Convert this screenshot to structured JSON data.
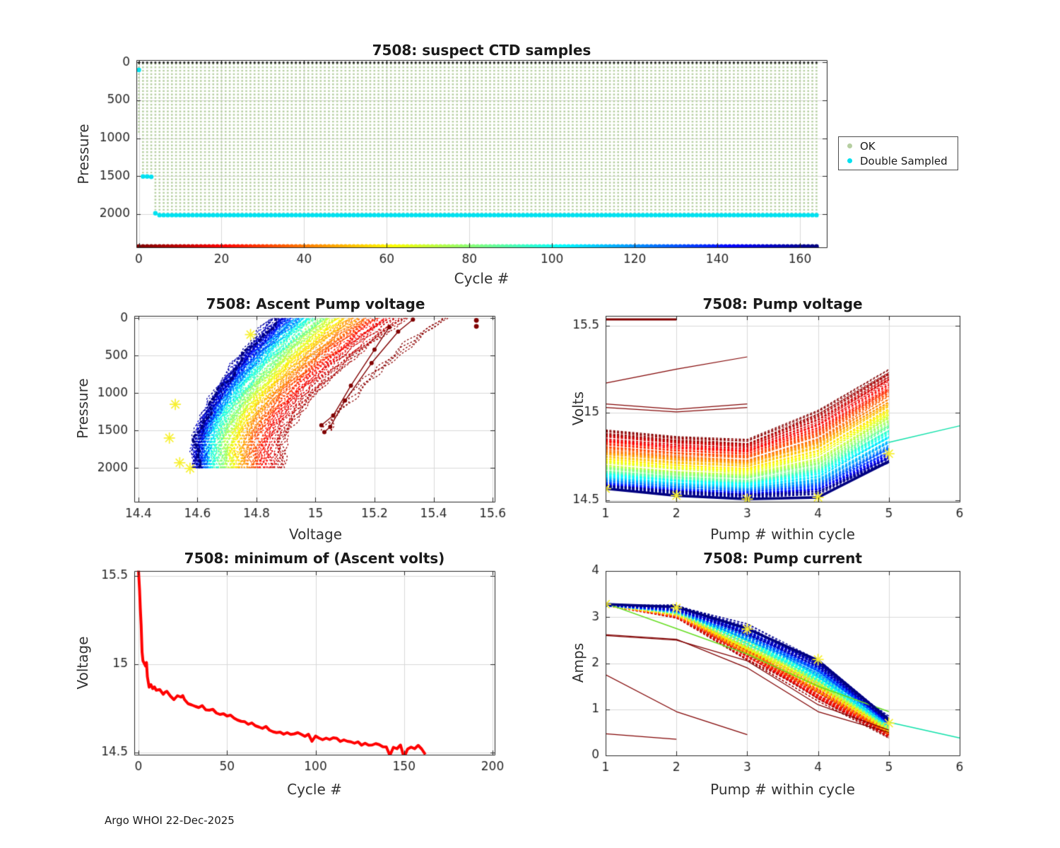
{
  "footer": {
    "text": "Argo WHOI 22-Dec-2025"
  },
  "styles": {
    "ok_green": "#b6cfa1",
    "cyan": "#00e1f0",
    "teal_line": "#0ce0a8",
    "dark_red": "#800000",
    "navy": "#000080",
    "red_line": "#ff0000",
    "asterisk_yellow": "#f7ef2e",
    "grid": "#d8d8d8",
    "axis": "#262626",
    "text": "#262626"
  },
  "chart_data": [
    {
      "id": "suspect-ctd",
      "type": "scatter",
      "title": "7508: suspect CTD samples",
      "xlabel": "Cycle #",
      "ylabel": "Pressure",
      "xlim": [
        0,
        166
      ],
      "xticks": [
        0,
        20,
        40,
        60,
        80,
        100,
        120,
        140,
        160
      ],
      "ylim": [
        0,
        2440
      ],
      "yticks": [
        0,
        500,
        1000,
        1500,
        2000
      ],
      "grid": true,
      "legend": {
        "position": "right-outside",
        "entries": [
          {
            "label": "OK",
            "color": "#b6cfa1"
          },
          {
            "label": "Double Sampled",
            "color": "#00e1f0"
          }
        ]
      },
      "series": {
        "n_cycles": 165,
        "profile_top_pressure": 10,
        "default_profile_bottom": 1990,
        "default_double_pressure": 2015,
        "exceptions": [
          {
            "cycle": 0,
            "bottom": 950,
            "double_pressure": 100
          },
          {
            "cycle": 1,
            "bottom": 1470,
            "double_pressure": 1505
          },
          {
            "cycle": 2,
            "bottom": 1470,
            "double_pressure": 1505
          },
          {
            "cycle": 3,
            "bottom": 1480,
            "double_pressure": 1510
          },
          {
            "cycle": 4,
            "bottom": 1950,
            "double_pressure": 1990
          }
        ],
        "cycle_color_row_pressure": 2430,
        "colormap": "jet-earliest-red"
      }
    },
    {
      "id": "ascent-pump-voltage",
      "type": "line-family",
      "title": "7508: Ascent Pump voltage",
      "xlabel": "Voltage",
      "ylabel": "Pressure",
      "xlim": [
        14.4,
        15.6
      ],
      "xticks": [
        14.4,
        14.6,
        14.8,
        15,
        15.2,
        15.4,
        15.6
      ],
      "ylim": [
        0,
        2450
      ],
      "yticks": [
        0,
        500,
        1000,
        1500,
        2000
      ],
      "grid": true,
      "family": {
        "count": 165,
        "colormap": "jet-earliest-red",
        "bottom_voltage_latest": 14.6,
        "bottom_voltage_earliest": 14.9,
        "rise_latest": 0.27,
        "rise_earliest": 0.41,
        "curve_start_pressure": 1700,
        "curve_power": 1.5,
        "max_pressure_default": 2000,
        "max_pressure_first_cycles": [
          950,
          1500,
          1500,
          1500,
          1950
        ],
        "early_shift": 0.13
      },
      "outlier_dots": [
        [
          15.545,
          30
        ],
        [
          15.545,
          110
        ]
      ],
      "outlier_lines": [
        [
          [
            15.03,
            1520
          ],
          [
            15.05,
            1450
          ],
          [
            15.1,
            1100
          ],
          [
            15.19,
            600
          ],
          [
            15.28,
            180
          ],
          [
            15.33,
            20
          ]
        ],
        [
          [
            15.02,
            1430
          ],
          [
            15.06,
            1300
          ],
          [
            15.12,
            900
          ],
          [
            15.2,
            420
          ],
          [
            15.25,
            120
          ]
        ]
      ],
      "asterisks": [
        [
          14.78,
          220
        ],
        [
          14.525,
          1150
        ],
        [
          14.505,
          1600
        ],
        [
          14.54,
          1930
        ],
        [
          14.575,
          2005
        ]
      ]
    },
    {
      "id": "pump-voltage",
      "type": "line-family",
      "title": "7508: Pump voltage",
      "xlabel": "Pump # within cycle",
      "ylabel": "Volts",
      "xlim": [
        1,
        6
      ],
      "xticks": [
        1,
        2,
        3,
        4,
        5,
        6
      ],
      "ylim": [
        14.49,
        15.555
      ],
      "yticks": [
        14.5,
        15,
        15.5
      ],
      "grid": true,
      "family": {
        "count": 160,
        "colormap": "jet-earliest-red",
        "x": [
          1,
          2,
          3,
          4,
          5
        ],
        "v1_latest": 14.575,
        "v1_earliest": 14.9,
        "dip2": 0.035,
        "dip3": 0.055,
        "v5_latest": 14.72,
        "v5_earliest": 15.24,
        "v4_frac_latest": 0.08,
        "v4_frac_earliest": 0.42
      },
      "highlight_line": [
        [
          1,
          14.565
        ],
        [
          2,
          14.525
        ],
        [
          3,
          14.505
        ],
        [
          4,
          14.515
        ],
        [
          5,
          14.72
        ]
      ],
      "outlier_lines": [
        {
          "points": [
            [
              1,
              15.535
            ],
            [
              2,
              15.535
            ]
          ],
          "width": 3
        },
        {
          "points": [
            [
              1,
              15.17
            ],
            [
              2,
              15.25
            ],
            [
              3,
              15.32
            ]
          ],
          "width": 1.2
        },
        {
          "points": [
            [
              1,
              15.05
            ],
            [
              2,
              15.02
            ],
            [
              3,
              15.05
            ]
          ],
          "width": 1.2
        },
        {
          "points": [
            [
              1,
              15.03
            ],
            [
              2,
              15.005
            ],
            [
              3,
              15.03
            ]
          ],
          "width": 1.2
        }
      ],
      "continuation_line": {
        "points": [
          [
            5,
            14.83
          ],
          [
            6,
            14.925
          ]
        ],
        "color": "#0ce0a8"
      },
      "asterisks": [
        [
          1,
          14.565
        ],
        [
          2,
          14.525
        ],
        [
          3,
          14.505
        ],
        [
          4,
          14.515
        ],
        [
          5,
          14.765
        ]
      ]
    },
    {
      "id": "min-ascent-volts",
      "type": "line",
      "title": "7508: minimum of (Ascent volts)",
      "xlabel": "Cycle #",
      "ylabel": "Voltage",
      "xlim": [
        0,
        200
      ],
      "xticks": [
        0,
        50,
        100,
        150,
        200
      ],
      "ylim": [
        14.5,
        15.53
      ],
      "yticks": [
        14.5,
        15,
        15.5
      ],
      "grid": true,
      "line": {
        "color": "#ff0000",
        "width": 4,
        "points": [
          [
            0,
            15.53
          ],
          [
            0.6,
            15.42
          ],
          [
            1,
            15.32
          ],
          [
            1.5,
            15.22
          ],
          [
            2,
            15.07
          ],
          [
            2.5,
            15.02
          ],
          [
            3,
            15.01
          ],
          [
            4,
            14.99
          ],
          [
            4.5,
            15.01
          ],
          [
            5,
            14.93
          ],
          [
            6,
            14.87
          ],
          [
            7,
            14.885
          ],
          [
            8,
            14.862
          ],
          [
            9,
            14.872
          ],
          [
            10,
            14.853
          ],
          [
            12,
            14.857
          ],
          [
            14,
            14.83
          ],
          [
            15,
            14.842
          ],
          [
            16,
            14.847
          ],
          [
            18,
            14.82
          ],
          [
            20,
            14.8
          ],
          [
            22,
            14.822
          ],
          [
            24,
            14.814
          ],
          [
            25,
            14.823
          ],
          [
            26,
            14.8
          ],
          [
            28,
            14.777
          ],
          [
            30,
            14.77
          ],
          [
            32,
            14.762
          ],
          [
            34,
            14.755
          ],
          [
            36,
            14.766
          ],
          [
            38,
            14.742
          ],
          [
            40,
            14.74
          ],
          [
            42,
            14.745
          ],
          [
            44,
            14.724
          ],
          [
            46,
            14.716
          ],
          [
            48,
            14.72
          ],
          [
            50,
            14.707
          ],
          [
            52,
            14.712
          ],
          [
            54,
            14.695
          ],
          [
            56,
            14.684
          ],
          [
            58,
            14.677
          ],
          [
            60,
            14.675
          ],
          [
            62,
            14.66
          ],
          [
            64,
            14.668
          ],
          [
            66,
            14.652
          ],
          [
            68,
            14.645
          ],
          [
            70,
            14.637
          ],
          [
            72,
            14.648
          ],
          [
            74,
            14.627
          ],
          [
            76,
            14.618
          ],
          [
            78,
            14.613
          ],
          [
            80,
            14.616
          ],
          [
            82,
            14.604
          ],
          [
            84,
            14.613
          ],
          [
            86,
            14.603
          ],
          [
            88,
            14.606
          ],
          [
            90,
            14.613
          ],
          [
            92,
            14.603
          ],
          [
            94,
            14.592
          ],
          [
            96,
            14.604
          ],
          [
            98,
            14.564
          ],
          [
            100,
            14.594
          ],
          [
            102,
            14.582
          ],
          [
            104,
            14.573
          ],
          [
            106,
            14.582
          ],
          [
            108,
            14.574
          ],
          [
            110,
            14.584
          ],
          [
            112,
            14.581
          ],
          [
            114,
            14.563
          ],
          [
            116,
            14.572
          ],
          [
            118,
            14.564
          ],
          [
            120,
            14.561
          ],
          [
            122,
            14.553
          ],
          [
            124,
            14.561
          ],
          [
            126,
            14.542
          ],
          [
            128,
            14.553
          ],
          [
            130,
            14.542
          ],
          [
            132,
            14.543
          ],
          [
            134,
            14.551
          ],
          [
            136,
            14.545
          ],
          [
            138,
            14.533
          ],
          [
            140,
            14.532
          ],
          [
            142,
            14.484
          ],
          [
            144,
            14.53
          ],
          [
            146,
            14.522
          ],
          [
            148,
            14.543
          ],
          [
            150,
            14.472
          ],
          [
            152,
            14.52
          ],
          [
            154,
            14.531
          ],
          [
            156,
            14.522
          ],
          [
            158,
            14.541
          ],
          [
            160,
            14.52
          ],
          [
            161,
            14.505
          ],
          [
            162,
            14.49
          ]
        ]
      }
    },
    {
      "id": "pump-current",
      "type": "line-family",
      "title": "7508: Pump current",
      "xlabel": "Pump # within cycle",
      "ylabel": "Amps",
      "xlim": [
        1,
        6
      ],
      "xticks": [
        1,
        2,
        3,
        4,
        5,
        6
      ],
      "ylim": [
        0,
        4
      ],
      "yticks": [
        0,
        1,
        2,
        3,
        4
      ],
      "grid": true,
      "family": {
        "count": 160,
        "colormap": "jet-earliest-red",
        "x": [
          1,
          2,
          3,
          4,
          5
        ],
        "c1": 3.27,
        "c2_latest": 3.22,
        "c2_earliest": 3.02,
        "c3_latest": 2.75,
        "c3_earliest": 2.15,
        "c4_latest": 2.05,
        "c4_earliest": 1.25,
        "c5_latest": 0.8,
        "c5_earliest": 0.42
      },
      "highlight_line": [
        [
          1,
          3.28
        ],
        [
          2,
          3.22
        ],
        [
          3,
          2.75
        ],
        [
          4,
          2.06
        ],
        [
          5,
          0.78
        ]
      ],
      "outlier_lines": [
        {
          "points": [
            [
              1,
              2.62
            ],
            [
              2,
              2.52
            ],
            [
              3,
              1.9
            ],
            [
              4,
              0.95
            ],
            [
              5,
              0.5
            ]
          ],
          "width": 1.3
        },
        {
          "points": [
            [
              1,
              2.6
            ],
            [
              2,
              2.5
            ],
            [
              3,
              2.05
            ],
            [
              4,
              1.1
            ],
            [
              5,
              0.55
            ]
          ],
          "width": 1.3
        },
        {
          "points": [
            [
              1,
              1.75
            ],
            [
              2,
              0.95
            ],
            [
              3,
              0.45
            ]
          ],
          "width": 1.3
        },
        {
          "points": [
            [
              1,
              0.47
            ],
            [
              2,
              0.35
            ]
          ],
          "width": 1.3
        }
      ],
      "green_line": {
        "points": [
          [
            1,
            3.3
          ],
          [
            2,
            2.75
          ],
          [
            3,
            2.2
          ],
          [
            4,
            1.5
          ],
          [
            5,
            0.95
          ]
        ],
        "color": "#66dd22"
      },
      "continuation_line": {
        "points": [
          [
            5,
            0.72
          ],
          [
            6,
            0.38
          ]
        ],
        "color": "#0ce0a8"
      },
      "asterisks": [
        [
          1,
          3.28
        ],
        [
          2,
          3.2
        ],
        [
          3,
          2.74
        ],
        [
          4,
          2.08
        ],
        [
          5,
          0.7
        ]
      ]
    }
  ]
}
